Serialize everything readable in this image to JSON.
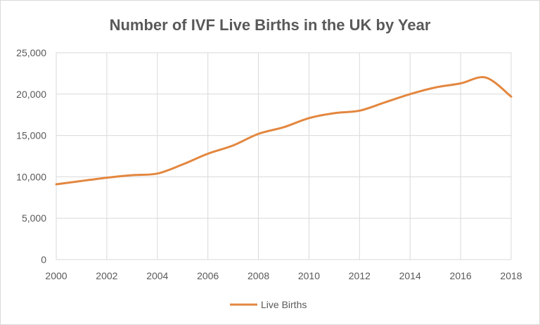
{
  "chart_data": {
    "type": "line",
    "title": "Number of IVF Live Births in the UK by Year",
    "xlabel": "",
    "ylabel": "",
    "x": [
      2000,
      2001,
      2002,
      2003,
      2004,
      2005,
      2006,
      2007,
      2008,
      2009,
      2010,
      2011,
      2012,
      2013,
      2014,
      2015,
      2016,
      2017,
      2018
    ],
    "series": [
      {
        "name": "Live Births",
        "color": "#E3873F",
        "values": [
          9100,
          9500,
          9900,
          10200,
          10400,
          11500,
          12800,
          13800,
          15200,
          16000,
          17100,
          17700,
          18000,
          19000,
          20000,
          20800,
          21300,
          22000,
          19700
        ]
      }
    ],
    "xlim": [
      2000,
      2018
    ],
    "ylim": [
      0,
      25000
    ],
    "x_ticks": [
      "2000",
      "2002",
      "2004",
      "2006",
      "2008",
      "2010",
      "2012",
      "2014",
      "2016",
      "2018"
    ],
    "y_ticks": [
      "0",
      "5,000",
      "10,000",
      "15,000",
      "20,000",
      "25,000"
    ],
    "grid": true,
    "smooth": true,
    "legend_position": "bottom"
  }
}
